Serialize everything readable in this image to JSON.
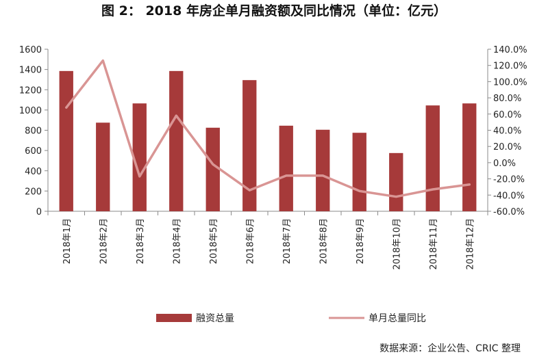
{
  "chart_data": {
    "type": "bar",
    "title": "图 2：  2018 年房企单月融资额及同比情况（单位：亿元）",
    "categories": [
      "2018年1月",
      "2018年2月",
      "2018年3月",
      "2018年4月",
      "2018年5月",
      "2018年6月",
      "2018年7月",
      "2018年8月",
      "2018年9月",
      "2018年10月",
      "2018年11月",
      "2018年12月"
    ],
    "series": [
      {
        "name": "融资总量",
        "type": "bar",
        "axis": "left",
        "color": "#a63a3a",
        "values": [
          1385,
          875,
          1065,
          1385,
          825,
          1295,
          845,
          805,
          775,
          575,
          1045,
          1065
        ]
      },
      {
        "name": "单月总量同比",
        "type": "line",
        "axis": "right",
        "color": "#d99594",
        "values": [
          68,
          126,
          -17,
          58,
          -2,
          -34,
          -16,
          -16,
          -35,
          -42,
          -33,
          -27
        ]
      }
    ],
    "y_left": {
      "min": 0,
      "max": 1600,
      "ticks": [
        0,
        200,
        400,
        600,
        800,
        1000,
        1200,
        1400,
        1600
      ],
      "tick_labels": [
        "0",
        "200",
        "400",
        "600",
        "800",
        "1000",
        "1200",
        "1400",
        "1600"
      ]
    },
    "y_right": {
      "min": -60,
      "max": 140,
      "ticks": [
        -60,
        -40,
        -20,
        0,
        20,
        40,
        60,
        80,
        100,
        120,
        140
      ],
      "tick_labels": [
        "-60.0%",
        "-40.0%",
        "-20.0%",
        "0.0%",
        "20.0%",
        "40.0%",
        "60.0%",
        "80.0%",
        "100.0%",
        "120.0%",
        "140.0%"
      ]
    },
    "grid": false,
    "legend_position": "bottom",
    "source": "数据来源：企业公告、CRIC 整理"
  }
}
